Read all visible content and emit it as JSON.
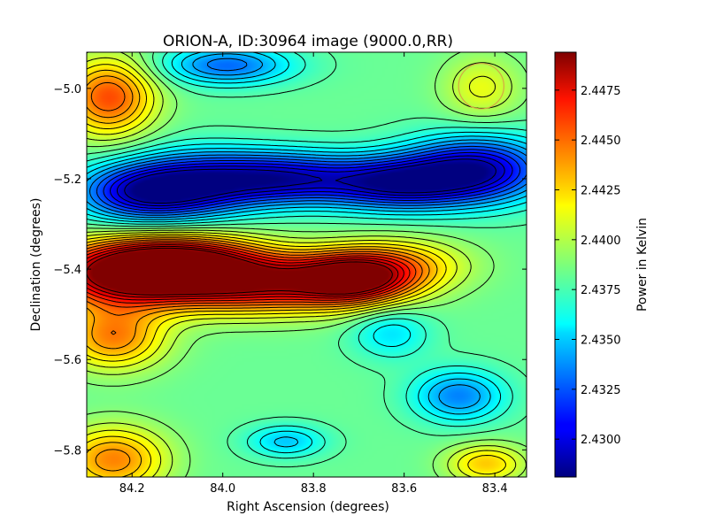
{
  "chart_data": {
    "type": "heatmap",
    "title": "ORION-A, ID:30964 image (9000.0,RR)",
    "xlabel": "Right Ascension (degrees)",
    "ylabel": "Declination (degrees)",
    "colorbar_label": "Power in Kelvin",
    "xlim": [
      84.3,
      83.33
    ],
    "ylim": [
      -5.86,
      -4.92
    ],
    "x_ticks": [
      84.2,
      84.0,
      83.8,
      83.6,
      83.4
    ],
    "x_tick_labels": [
      "84.2",
      "84.0",
      "83.8",
      "83.6",
      "83.4"
    ],
    "y_ticks": [
      -5.0,
      -5.2,
      -5.4,
      -5.6,
      -5.8
    ],
    "y_tick_labels": [
      "−5.0",
      "−5.2",
      "−5.4",
      "−5.6",
      "−5.8"
    ],
    "colorbar_range": [
      2.4281,
      2.4494
    ],
    "colorbar_ticks": [
      2.43,
      2.4325,
      2.435,
      2.4375,
      2.44,
      2.4425,
      2.445,
      2.4475
    ],
    "colorbar_tick_labels": [
      "2.4300",
      "2.4325",
      "2.4350",
      "2.4375",
      "2.4400",
      "2.4425",
      "2.4450",
      "2.4475"
    ],
    "colormap": "jet",
    "background_level": 2.4383,
    "features": [
      {
        "ra": 84.22,
        "dec": -5.41,
        "value": 2.4487,
        "sra": 0.13,
        "sdec": 0.05
      },
      {
        "ra": 83.93,
        "dec": -5.43,
        "value": 2.448,
        "sra": 0.16,
        "sdec": 0.045
      },
      {
        "ra": 83.71,
        "dec": -5.42,
        "value": 2.4476,
        "sra": 0.09,
        "sdec": 0.04
      },
      {
        "ra": 84.08,
        "dec": -5.38,
        "value": 2.4455,
        "sra": 0.12,
        "sdec": 0.04
      },
      {
        "ra": 83.6,
        "dec": -5.39,
        "value": 2.442,
        "sra": 0.1,
        "sdec": 0.04
      },
      {
        "ra": 84.24,
        "dec": -5.55,
        "value": 2.444,
        "sra": 0.08,
        "sdec": 0.05
      },
      {
        "ra": 84.25,
        "dec": -5.02,
        "value": 2.4452,
        "sra": 0.07,
        "sdec": 0.06
      },
      {
        "ra": 84.24,
        "dec": -5.82,
        "value": 2.444,
        "sra": 0.08,
        "sdec": 0.05
      },
      {
        "ra": 83.42,
        "dec": -5.83,
        "value": 2.4425,
        "sra": 0.06,
        "sdec": 0.03
      },
      {
        "ra": 84.18,
        "dec": -5.23,
        "value": 2.43,
        "sra": 0.1,
        "sdec": 0.045
      },
      {
        "ra": 83.87,
        "dec": -5.2,
        "value": 2.43,
        "sra": 0.12,
        "sdec": 0.04
      },
      {
        "ra": 83.62,
        "dec": -5.21,
        "value": 2.43,
        "sra": 0.11,
        "sdec": 0.04
      },
      {
        "ra": 83.44,
        "dec": -5.18,
        "value": 2.4293,
        "sra": 0.11,
        "sdec": 0.05
      },
      {
        "ra": 84.05,
        "dec": -5.21,
        "value": 2.4325,
        "sra": 0.1,
        "sdec": 0.05
      },
      {
        "ra": 83.99,
        "dec": -4.95,
        "value": 2.433,
        "sra": 0.1,
        "sdec": 0.03
      },
      {
        "ra": 83.48,
        "dec": -5.68,
        "value": 2.4335,
        "sra": 0.07,
        "sdec": 0.04
      },
      {
        "ra": 83.63,
        "dec": -5.54,
        "value": 2.4355,
        "sra": 0.06,
        "sdec": 0.04
      },
      {
        "ra": 83.86,
        "dec": -5.78,
        "value": 2.435,
        "sra": 0.06,
        "sdec": 0.025
      },
      {
        "ra": 83.43,
        "dec": -5.0,
        "value": 2.441,
        "sra": 0.06,
        "sdec": 0.05
      }
    ],
    "annotation_circle": {
      "ra": 83.43,
      "dec": -4.995,
      "radius_deg": 0.05,
      "color": "#d4a843"
    },
    "grid": false
  }
}
